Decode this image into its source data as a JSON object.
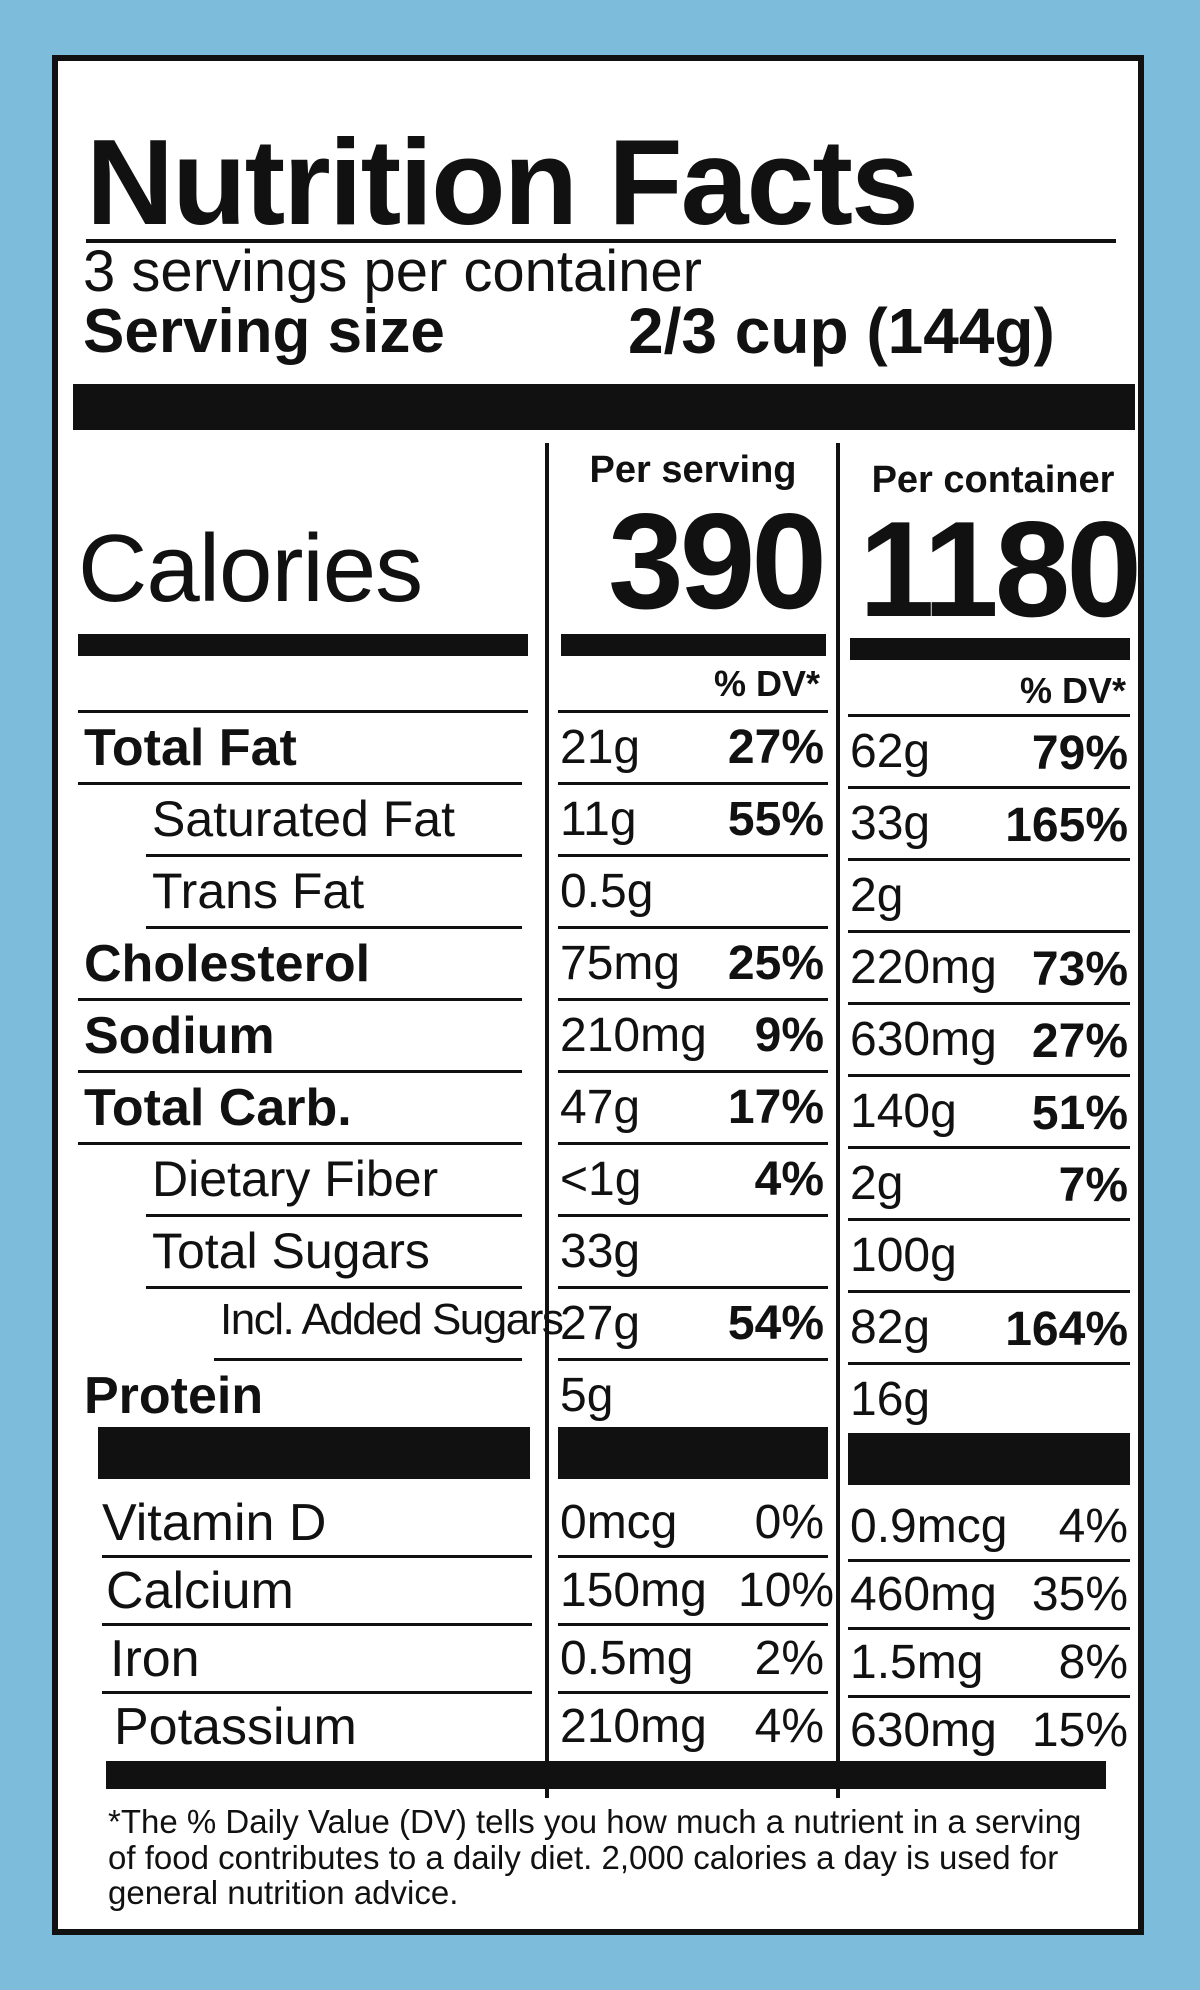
{
  "title": "Nutrition Facts",
  "servings_per_container": "3 servings per container",
  "serving_size_label": "Serving size",
  "serving_size_value": "2/3 cup  (144g)",
  "columns": {
    "per_serving": "Per serving",
    "per_container": "Per container"
  },
  "calories": {
    "label": "Calories",
    "per_serving": "390",
    "per_container": "1180"
  },
  "dv_header": "% DV*",
  "nutrients": [
    {
      "label": "Total Fat",
      "bold": true,
      "indent": 0,
      "s_amt": "21g",
      "s_dv": "27%",
      "c_amt": "62g",
      "c_dv": "79%"
    },
    {
      "label": "Saturated Fat",
      "bold": false,
      "indent": 1,
      "s_amt": "11g",
      "s_dv": "55%",
      "c_amt": "33g",
      "c_dv": "165%"
    },
    {
      "label": "Trans Fat",
      "bold": false,
      "indent": 1,
      "s_amt": "0.5g",
      "s_dv": "",
      "c_amt": "2g",
      "c_dv": ""
    },
    {
      "label": "Cholesterol",
      "bold": true,
      "indent": 0,
      "s_amt": "75mg",
      "s_dv": "25%",
      "c_amt": "220mg",
      "c_dv": "73%"
    },
    {
      "label": "Sodium",
      "bold": true,
      "indent": 0,
      "s_amt": "210mg",
      "s_dv": "9%",
      "c_amt": "630mg",
      "c_dv": "27%"
    },
    {
      "label": "Total Carb.",
      "bold": true,
      "indent": 0,
      "s_amt": "47g",
      "s_dv": "17%",
      "c_amt": "140g",
      "c_dv": "51%"
    },
    {
      "label": "Dietary Fiber",
      "bold": false,
      "indent": 1,
      "s_amt": "<1g",
      "s_dv": "4%",
      "c_amt": "2g",
      "c_dv": "7%"
    },
    {
      "label": "Total Sugars",
      "bold": false,
      "indent": 1,
      "s_amt": "33g",
      "s_dv": "",
      "c_amt": "100g",
      "c_dv": ""
    },
    {
      "label": "Incl. Added Sugars",
      "bold": false,
      "indent": 2,
      "s_amt": "27g",
      "s_dv": "54%",
      "c_amt": "82g",
      "c_dv": "164%"
    },
    {
      "label": "Protein",
      "bold": true,
      "indent": 0,
      "s_amt": "5g",
      "s_dv": "",
      "c_amt": "16g",
      "c_dv": ""
    }
  ],
  "vitamins": [
    {
      "label": "Vitamin D",
      "s_amt": "0mcg",
      "s_dv": "0%",
      "c_amt": "0.9mcg",
      "c_dv": "4%"
    },
    {
      "label": "Calcium",
      "s_amt": "150mg",
      "s_dv": "10%",
      "c_amt": "460mg",
      "c_dv": "35%"
    },
    {
      "label": "Iron",
      "s_amt": "0.5mg",
      "s_dv": "2%",
      "c_amt": "1.5mg",
      "c_dv": "8%"
    },
    {
      "label": "Potassium",
      "s_amt": "210mg",
      "s_dv": "4%",
      "c_amt": "630mg",
      "c_dv": "15%"
    }
  ],
  "footnote": "*The % Daily Value (DV) tells you how much a nutrient in a serving of food contributes to a daily diet. 2,000 calories a day is used for general nutrition advice.",
  "colors": {
    "background": "#7ebcdb",
    "panel": "#ffffff",
    "ink": "#111111"
  }
}
